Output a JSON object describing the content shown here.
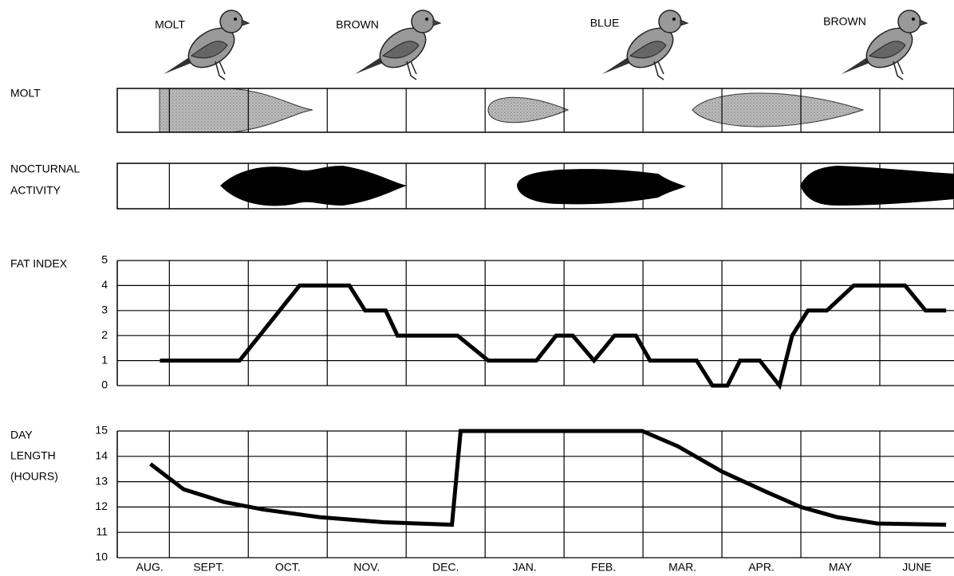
{
  "plumage": [
    "MOLT",
    "BROWN",
    "BLUE",
    "BROWN"
  ],
  "rows": {
    "molt": "MOLT",
    "nocturnal": [
      "NOCTURNAL",
      "ACTIVITY"
    ]
  },
  "chart_data": [
    {
      "type": "line",
      "ylabel": [
        "FAT INDEX"
      ],
      "color": "#000000",
      "grid": true,
      "x": [
        0.88,
        1.89,
        2.65,
        3.28,
        3.48,
        3.74,
        3.89,
        4.65,
        5.04,
        5.65,
        5.9,
        6.11,
        6.38,
        6.64,
        6.91,
        7.09,
        7.68,
        7.88,
        8.07,
        8.23,
        8.48,
        8.73,
        8.89,
        9.09,
        9.33,
        9.67,
        10.32,
        10.58,
        10.84
      ],
      "y": [
        1,
        1,
        4,
        4,
        3,
        3,
        2,
        2,
        1,
        1,
        2,
        2,
        1,
        2,
        2,
        1,
        1,
        0,
        0,
        1,
        1,
        0,
        2,
        3,
        3,
        4,
        4,
        3,
        3
      ],
      "xlim": [
        0.34,
        10.94
      ],
      "ylim": [
        0,
        5
      ],
      "yticks": [
        0,
        1,
        2,
        3,
        4,
        5
      ]
    },
    {
      "type": "line",
      "ylabel": [
        "DAY",
        "LENGTH",
        "(HOURS)"
      ],
      "color": "#000000",
      "grid": true,
      "categories": [
        "AUG.",
        "SEPT.",
        "OCT.",
        "NOV.",
        "DEC.",
        "JAN.",
        "FEB.",
        "MAR.",
        "APR.",
        "MAY",
        "JUNE"
      ],
      "x": [
        0.76,
        1.18,
        1.69,
        2.19,
        2.9,
        3.71,
        4.58,
        4.69,
        6.99,
        7.44,
        8.0,
        8.56,
        9.0,
        9.46,
        9.97,
        10.84
      ],
      "y": [
        13.7,
        12.7,
        12.2,
        11.9,
        11.6,
        11.4,
        11.3,
        15,
        15,
        14.4,
        13.4,
        12.6,
        12.0,
        11.6,
        11.35,
        11.3
      ],
      "xlim": [
        0.34,
        10.94
      ],
      "ylim": [
        10,
        15
      ],
      "yticks": [
        10,
        11,
        12,
        13,
        14,
        15
      ]
    }
  ]
}
